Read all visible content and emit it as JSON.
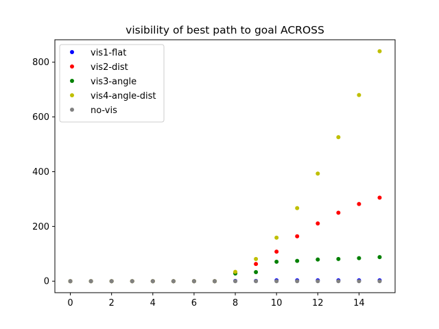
{
  "chart_data": {
    "type": "scatter",
    "title": "visibility of best path to goal ACROSS",
    "xlabel": "",
    "ylabel": "",
    "xlim": [
      -0.75,
      15.75
    ],
    "ylim": [
      -42,
      882
    ],
    "xticks": [
      0,
      2,
      4,
      6,
      8,
      10,
      12,
      14
    ],
    "yticks": [
      0,
      200,
      400,
      600,
      800
    ],
    "grid": false,
    "legend_position": "upper-left",
    "x": [
      0,
      1,
      2,
      3,
      4,
      5,
      6,
      7,
      8,
      9,
      10,
      11,
      12,
      13,
      14,
      15
    ],
    "series": [
      {
        "name": "vis1-flat",
        "color": "#0000ff",
        "values": [
          0,
          0,
          0,
          0,
          0,
          0,
          0,
          0,
          1,
          1,
          3,
          3,
          3,
          3,
          3,
          3
        ]
      },
      {
        "name": "vis2-dist",
        "color": "#ff0000",
        "values": [
          0,
          0,
          0,
          0,
          0,
          0,
          0,
          0,
          30,
          63,
          108,
          164,
          211,
          250,
          282,
          305
        ]
      },
      {
        "name": "vis3-angle",
        "color": "#008000",
        "values": [
          0,
          0,
          0,
          0,
          0,
          0,
          0,
          0,
          28,
          33,
          71,
          74,
          79,
          81,
          84,
          88
        ]
      },
      {
        "name": "vis4-angle-dist",
        "color": "#bfbf00",
        "values": [
          0,
          0,
          0,
          0,
          0,
          0,
          0,
          0,
          34,
          81,
          159,
          267,
          393,
          526,
          680,
          840
        ]
      },
      {
        "name": "no-vis",
        "color": "#808080",
        "values": [
          0,
          0,
          0,
          0,
          0,
          0,
          0,
          0,
          0,
          0,
          0,
          0,
          0,
          0,
          0,
          0
        ]
      }
    ]
  }
}
